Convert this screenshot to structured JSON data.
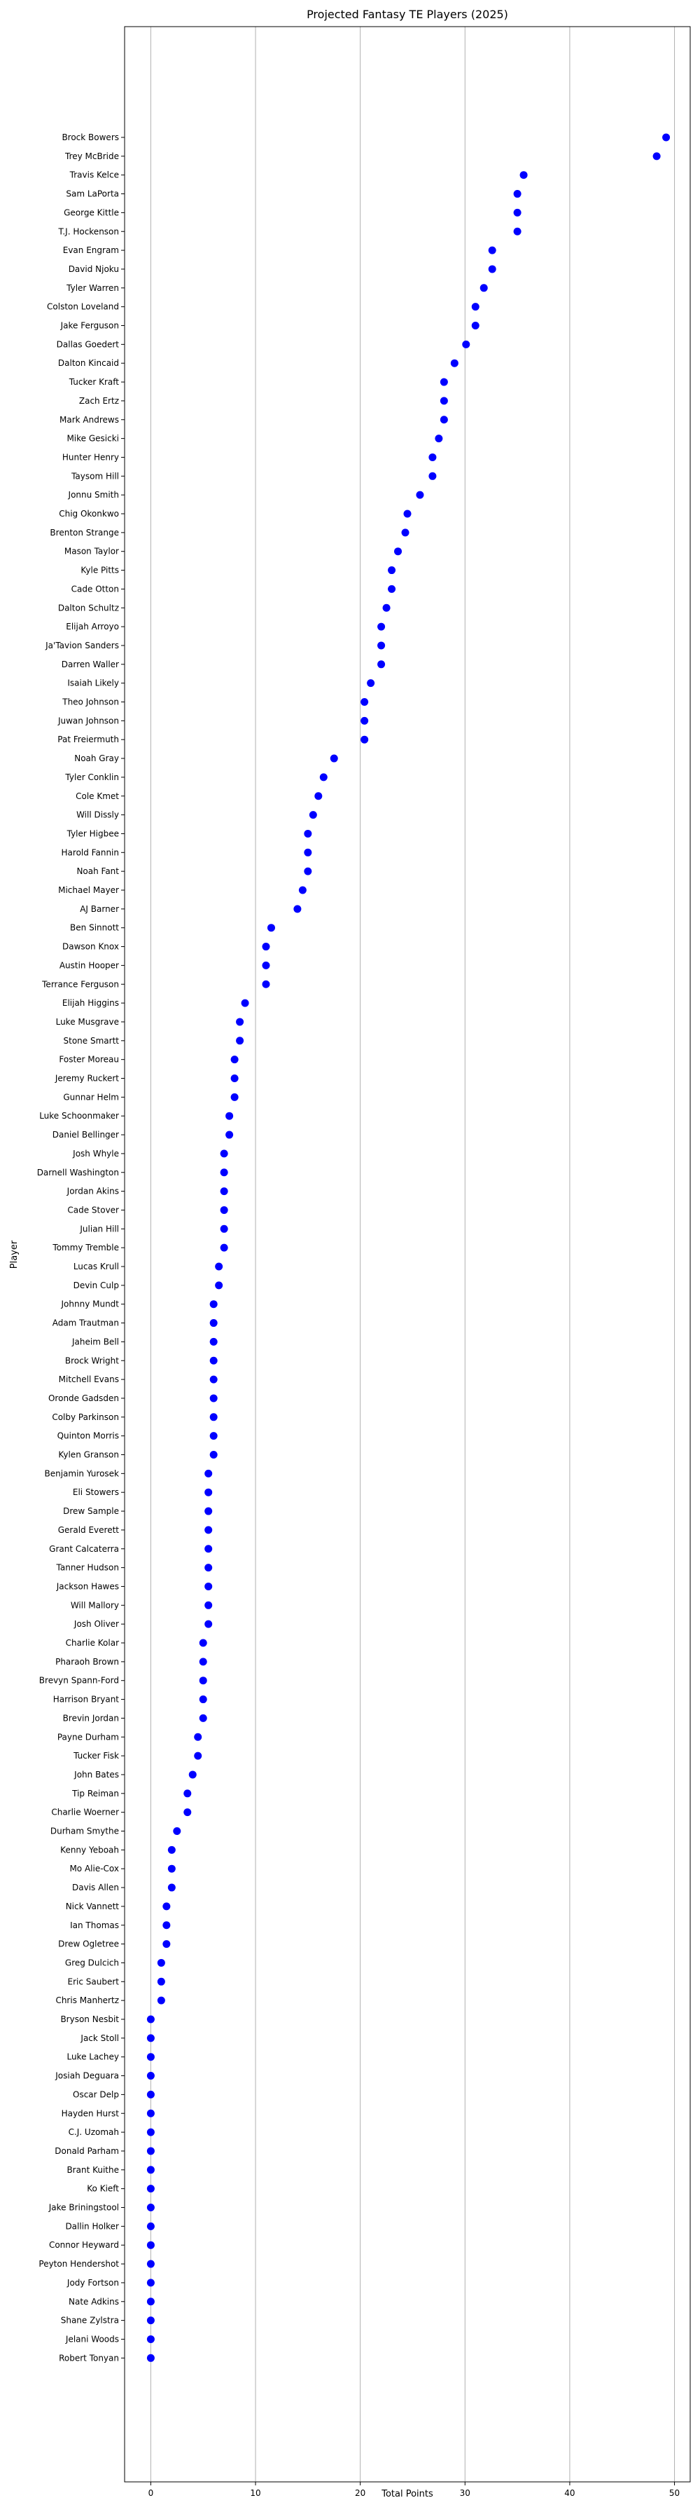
{
  "chart_data": {
    "type": "scatter",
    "title": "Projected Fantasy TE Players (2025)",
    "xlabel": "Total Points",
    "ylabel": "Player",
    "xlim": [
      -2.5,
      51.5
    ],
    "x_ticks": [
      0,
      10,
      20,
      30,
      40,
      50
    ],
    "grid": "vertical",
    "marker_color": "#0000ff",
    "points": [
      {
        "player": "Brock Bowers",
        "points": 49.2
      },
      {
        "player": "Trey McBride",
        "points": 48.3
      },
      {
        "player": "Travis Kelce",
        "points": 35.6
      },
      {
        "player": "Sam LaPorta",
        "points": 35.0
      },
      {
        "player": "George Kittle",
        "points": 35.0
      },
      {
        "player": "T.J. Hockenson",
        "points": 35.0
      },
      {
        "player": "Evan Engram",
        "points": 32.6
      },
      {
        "player": "David Njoku",
        "points": 32.6
      },
      {
        "player": "Tyler Warren",
        "points": 31.8
      },
      {
        "player": "Colston Loveland",
        "points": 31.0
      },
      {
        "player": "Jake Ferguson",
        "points": 31.0
      },
      {
        "player": "Dallas Goedert",
        "points": 30.1
      },
      {
        "player": "Dalton Kincaid",
        "points": 29.0
      },
      {
        "player": "Tucker Kraft",
        "points": 28.0
      },
      {
        "player": "Zach Ertz",
        "points": 28.0
      },
      {
        "player": "Mark Andrews",
        "points": 28.0
      },
      {
        "player": "Mike Gesicki",
        "points": 27.5
      },
      {
        "player": "Hunter Henry",
        "points": 26.9
      },
      {
        "player": "Taysom Hill",
        "points": 26.9
      },
      {
        "player": "Jonnu Smith",
        "points": 25.7
      },
      {
        "player": "Chig Okonkwo",
        "points": 24.5
      },
      {
        "player": "Brenton Strange",
        "points": 24.3
      },
      {
        "player": "Mason Taylor",
        "points": 23.6
      },
      {
        "player": "Kyle Pitts",
        "points": 23.0
      },
      {
        "player": "Cade Otton",
        "points": 23.0
      },
      {
        "player": "Dalton Schultz",
        "points": 22.5
      },
      {
        "player": "Elijah Arroyo",
        "points": 22.0
      },
      {
        "player": "Ja'Tavion Sanders",
        "points": 22.0
      },
      {
        "player": "Darren Waller",
        "points": 22.0
      },
      {
        "player": "Isaiah Likely",
        "points": 21.0
      },
      {
        "player": "Theo Johnson",
        "points": 20.4
      },
      {
        "player": "Juwan Johnson",
        "points": 20.4
      },
      {
        "player": "Pat Freiermuth",
        "points": 20.4
      },
      {
        "player": "Noah Gray",
        "points": 17.5
      },
      {
        "player": "Tyler Conklin",
        "points": 16.5
      },
      {
        "player": "Cole Kmet",
        "points": 16.0
      },
      {
        "player": "Will Dissly",
        "points": 15.5
      },
      {
        "player": "Tyler Higbee",
        "points": 15.0
      },
      {
        "player": "Harold Fannin",
        "points": 15.0
      },
      {
        "player": "Noah Fant",
        "points": 15.0
      },
      {
        "player": "Michael Mayer",
        "points": 14.5
      },
      {
        "player": "AJ Barner",
        "points": 14.0
      },
      {
        "player": "Ben Sinnott",
        "points": 11.5
      },
      {
        "player": "Dawson Knox",
        "points": 11.0
      },
      {
        "player": "Austin Hooper",
        "points": 11.0
      },
      {
        "player": "Terrance Ferguson",
        "points": 11.0
      },
      {
        "player": "Elijah Higgins",
        "points": 9.0
      },
      {
        "player": "Luke Musgrave",
        "points": 8.5
      },
      {
        "player": "Stone Smartt",
        "points": 8.5
      },
      {
        "player": "Foster Moreau",
        "points": 8.0
      },
      {
        "player": "Jeremy Ruckert",
        "points": 8.0
      },
      {
        "player": "Gunnar Helm",
        "points": 8.0
      },
      {
        "player": "Luke Schoonmaker",
        "points": 7.5
      },
      {
        "player": "Daniel Bellinger",
        "points": 7.5
      },
      {
        "player": "Josh Whyle",
        "points": 7.0
      },
      {
        "player": "Darnell Washington",
        "points": 7.0
      },
      {
        "player": "Jordan Akins",
        "points": 7.0
      },
      {
        "player": "Cade Stover",
        "points": 7.0
      },
      {
        "player": "Julian Hill",
        "points": 7.0
      },
      {
        "player": "Tommy Tremble",
        "points": 7.0
      },
      {
        "player": "Lucas Krull",
        "points": 6.5
      },
      {
        "player": "Devin Culp",
        "points": 6.5
      },
      {
        "player": "Johnny Mundt",
        "points": 6.0
      },
      {
        "player": "Adam Trautman",
        "points": 6.0
      },
      {
        "player": "Jaheim Bell",
        "points": 6.0
      },
      {
        "player": "Brock Wright",
        "points": 6.0
      },
      {
        "player": "Mitchell Evans",
        "points": 6.0
      },
      {
        "player": "Oronde Gadsden",
        "points": 6.0
      },
      {
        "player": "Colby Parkinson",
        "points": 6.0
      },
      {
        "player": "Quinton Morris",
        "points": 6.0
      },
      {
        "player": "Kylen Granson",
        "points": 6.0
      },
      {
        "player": "Benjamin Yurosek",
        "points": 5.5
      },
      {
        "player": "Eli Stowers",
        "points": 5.5
      },
      {
        "player": "Drew Sample",
        "points": 5.5
      },
      {
        "player": "Gerald Everett",
        "points": 5.5
      },
      {
        "player": "Grant Calcaterra",
        "points": 5.5
      },
      {
        "player": "Tanner Hudson",
        "points": 5.5
      },
      {
        "player": "Jackson Hawes",
        "points": 5.5
      },
      {
        "player": "Will Mallory",
        "points": 5.5
      },
      {
        "player": "Josh Oliver",
        "points": 5.5
      },
      {
        "player": "Charlie Kolar",
        "points": 5.0
      },
      {
        "player": "Pharaoh Brown",
        "points": 5.0
      },
      {
        "player": "Brevyn Spann-Ford",
        "points": 5.0
      },
      {
        "player": "Harrison Bryant",
        "points": 5.0
      },
      {
        "player": "Brevin Jordan",
        "points": 5.0
      },
      {
        "player": "Payne Durham",
        "points": 4.5
      },
      {
        "player": "Tucker Fisk",
        "points": 4.5
      },
      {
        "player": "John Bates",
        "points": 4.0
      },
      {
        "player": "Tip Reiman",
        "points": 3.5
      },
      {
        "player": "Charlie Woerner",
        "points": 3.5
      },
      {
        "player": "Durham Smythe",
        "points": 2.5
      },
      {
        "player": "Kenny Yeboah",
        "points": 2.0
      },
      {
        "player": "Mo Alie-Cox",
        "points": 2.0
      },
      {
        "player": "Davis Allen",
        "points": 2.0
      },
      {
        "player": "Nick Vannett",
        "points": 1.5
      },
      {
        "player": "Ian Thomas",
        "points": 1.5
      },
      {
        "player": "Drew Ogletree",
        "points": 1.5
      },
      {
        "player": "Greg Dulcich",
        "points": 1.0
      },
      {
        "player": "Eric Saubert",
        "points": 1.0
      },
      {
        "player": "Chris Manhertz",
        "points": 1.0
      },
      {
        "player": "Bryson Nesbit",
        "points": 0.0
      },
      {
        "player": "Jack Stoll",
        "points": 0.0
      },
      {
        "player": "Luke Lachey",
        "points": 0.0
      },
      {
        "player": "Josiah Deguara",
        "points": 0.0
      },
      {
        "player": "Oscar Delp",
        "points": 0.0
      },
      {
        "player": "Hayden Hurst",
        "points": 0.0
      },
      {
        "player": "C.J. Uzomah",
        "points": 0.0
      },
      {
        "player": "Donald Parham",
        "points": 0.0
      },
      {
        "player": "Brant Kuithe",
        "points": 0.0
      },
      {
        "player": "Ko Kieft",
        "points": 0.0
      },
      {
        "player": "Jake Briningstool",
        "points": 0.0
      },
      {
        "player": "Dallin Holker",
        "points": 0.0
      },
      {
        "player": "Connor Heyward",
        "points": 0.0
      },
      {
        "player": "Peyton Hendershot",
        "points": 0.0
      },
      {
        "player": "Jody Fortson",
        "points": 0.0
      },
      {
        "player": "Nate Adkins",
        "points": 0.0
      },
      {
        "player": "Shane Zylstra",
        "points": 0.0
      },
      {
        "player": "Jelani Woods",
        "points": 0.0
      },
      {
        "player": "Robert Tonyan",
        "points": 0.0
      }
    ]
  }
}
